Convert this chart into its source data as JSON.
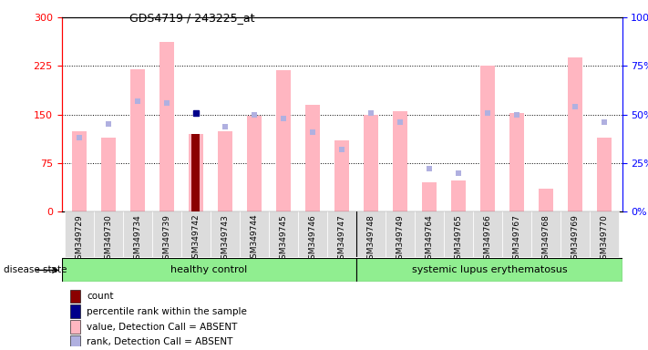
{
  "title": "GDS4719 / 243225_at",
  "samples": [
    "GSM349729",
    "GSM349730",
    "GSM349734",
    "GSM349739",
    "GSM349742",
    "GSM349743",
    "GSM349744",
    "GSM349745",
    "GSM349746",
    "GSM349747",
    "GSM349748",
    "GSM349749",
    "GSM349764",
    "GSM349765",
    "GSM349766",
    "GSM349767",
    "GSM349768",
    "GSM349769",
    "GSM349770"
  ],
  "healthy_control_count": 10,
  "values": [
    125,
    115,
    220,
    262,
    120,
    125,
    148,
    218,
    165,
    110,
    150,
    155,
    45,
    48,
    225,
    152,
    35,
    238,
    115
  ],
  "rank_pct": [
    38,
    45,
    57,
    56,
    null,
    44,
    50,
    48,
    41,
    32,
    51,
    46,
    22,
    20,
    51,
    50,
    null,
    54,
    46
  ],
  "count_idx": 4,
  "count_val": 120,
  "percentile_idx": 4,
  "percentile_pct": 51,
  "ylim_left": [
    0,
    300
  ],
  "ylim_right": [
    0,
    100
  ],
  "yticks_left": [
    0,
    75,
    150,
    225,
    300
  ],
  "yticks_right": [
    0,
    25,
    50,
    75,
    100
  ],
  "group1_label": "healthy control",
  "group2_label": "systemic lupus erythematosus",
  "bar_color_value": "#FFB6C1",
  "bar_color_rank": "#B0B0E0",
  "bar_color_count": "#8B0000",
  "bar_color_percentile": "#00008B",
  "disease_state_label": "disease state",
  "legend_items": [
    {
      "label": "count",
      "color": "#8B0000"
    },
    {
      "label": "percentile rank within the sample",
      "color": "#00008B"
    },
    {
      "label": "value, Detection Call = ABSENT",
      "color": "#FFB6C1"
    },
    {
      "label": "rank, Detection Call = ABSENT",
      "color": "#B0B0E0"
    }
  ],
  "bg_gray": "#DCDCDC"
}
